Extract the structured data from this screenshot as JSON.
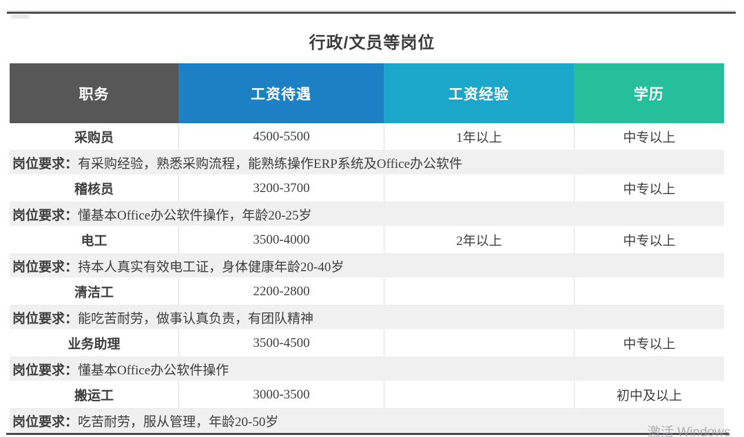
{
  "page": {
    "title": "行政/文员等岗位",
    "watermark": "激活 Windows"
  },
  "table": {
    "req_label": "岗位要求：",
    "columns": [
      {
        "label": "职务",
        "color": "#575757"
      },
      {
        "label": "工资待遇",
        "color": "#1b80c4"
      },
      {
        "label": "工资经验",
        "color": "#1ba7ca"
      },
      {
        "label": "学历",
        "color": "#26bf9c"
      }
    ],
    "rows": [
      {
        "position": "采购员",
        "salary": "4500-5500",
        "experience": "1年以上",
        "education": "中专以上",
        "requirement": "有采购经验，熟悉采购流程，能熟练操作ERP系统及Office办公软件"
      },
      {
        "position": "稽核员",
        "salary": "3200-3700",
        "experience": "",
        "education": "中专以上",
        "requirement": "懂基本Office办公软件操作，年龄20-25岁"
      },
      {
        "position": "电工",
        "salary": "3500-4000",
        "experience": "2年以上",
        "education": "中专以上",
        "requirement": "持本人真实有效电工证，身体健康年龄20-40岁"
      },
      {
        "position": "清洁工",
        "salary": "2200-2800",
        "experience": "",
        "education": "",
        "requirement": "能吃苦耐劳，做事认真负责，有团队精神"
      },
      {
        "position": "业务助理",
        "salary": "3500-4500",
        "experience": "",
        "education": "中专以上",
        "requirement": "懂基本Office办公软件操作"
      },
      {
        "position": "搬运工",
        "salary": "3000-3500",
        "experience": "",
        "education": "初中及以上",
        "requirement": "吃苦耐劳，服从管理，年龄20-50岁"
      }
    ]
  }
}
